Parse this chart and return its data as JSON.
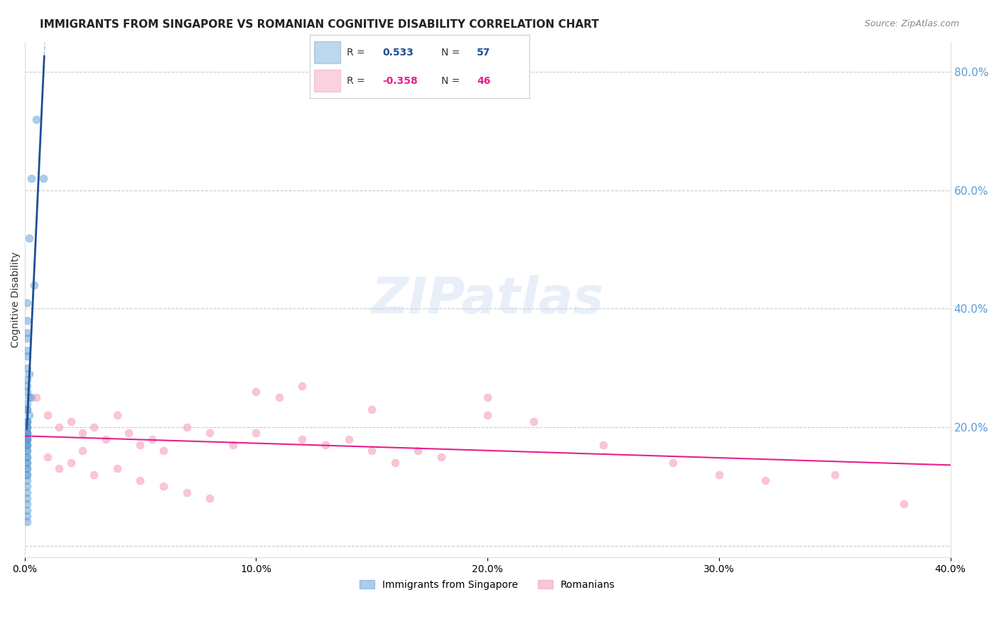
{
  "title": "IMMIGRANTS FROM SINGAPORE VS ROMANIAN COGNITIVE DISABILITY CORRELATION CHART",
  "source": "Source: ZipAtlas.com",
  "ylabel": "Cognitive Disability",
  "watermark": "ZIPatlas",
  "legend_entries": [
    {
      "label": "Immigrants from Singapore",
      "R": "0.533",
      "N": "57",
      "color": "#5b9bd5",
      "r_color": "#1f4e96",
      "sign": ""
    },
    {
      "label": "Romanians",
      "R": "-0.358",
      "N": "46",
      "color": "#f48fb1",
      "r_color": "#e91e8c",
      "sign": "-"
    }
  ],
  "right_yticks": [
    0.0,
    0.2,
    0.4,
    0.6,
    0.8
  ],
  "right_ytick_labels": [
    "",
    "20.0%",
    "40.0%",
    "60.0%",
    "80.0%"
  ],
  "xlim": [
    0.0,
    0.4
  ],
  "ylim": [
    -0.02,
    0.85
  ],
  "singapore_x": [
    0.005,
    0.003,
    0.008,
    0.002,
    0.004,
    0.001,
    0.001,
    0.001,
    0.001,
    0.001,
    0.001,
    0.001,
    0.002,
    0.001,
    0.001,
    0.001,
    0.003,
    0.002,
    0.001,
    0.001,
    0.001,
    0.002,
    0.001,
    0.001,
    0.001,
    0.001,
    0.001,
    0.001,
    0.001,
    0.001,
    0.001,
    0.001,
    0.001,
    0.001,
    0.001,
    0.001,
    0.001,
    0.001,
    0.001,
    0.001,
    0.001,
    0.001,
    0.001,
    0.001,
    0.001,
    0.001,
    0.001,
    0.001,
    0.001,
    0.001,
    0.001,
    0.001,
    0.001,
    0.001,
    0.001,
    0.001,
    0.001
  ],
  "singapore_y": [
    0.72,
    0.62,
    0.62,
    0.52,
    0.44,
    0.41,
    0.38,
    0.36,
    0.35,
    0.33,
    0.32,
    0.3,
    0.29,
    0.28,
    0.27,
    0.26,
    0.25,
    0.25,
    0.24,
    0.23,
    0.23,
    0.22,
    0.21,
    0.21,
    0.21,
    0.2,
    0.2,
    0.2,
    0.19,
    0.19,
    0.19,
    0.19,
    0.18,
    0.18,
    0.18,
    0.18,
    0.17,
    0.17,
    0.17,
    0.16,
    0.16,
    0.15,
    0.15,
    0.14,
    0.14,
    0.13,
    0.13,
    0.12,
    0.12,
    0.11,
    0.1,
    0.09,
    0.08,
    0.07,
    0.06,
    0.05,
    0.04
  ],
  "romanian_x": [
    0.005,
    0.01,
    0.015,
    0.02,
    0.025,
    0.03,
    0.035,
    0.04,
    0.045,
    0.05,
    0.055,
    0.06,
    0.07,
    0.08,
    0.09,
    0.1,
    0.11,
    0.12,
    0.13,
    0.14,
    0.15,
    0.16,
    0.17,
    0.18,
    0.2,
    0.22,
    0.25,
    0.28,
    0.3,
    0.32,
    0.01,
    0.015,
    0.02,
    0.025,
    0.03,
    0.04,
    0.05,
    0.06,
    0.07,
    0.08,
    0.1,
    0.12,
    0.15,
    0.2,
    0.35,
    0.38
  ],
  "romanian_y": [
    0.25,
    0.22,
    0.2,
    0.21,
    0.19,
    0.2,
    0.18,
    0.22,
    0.19,
    0.17,
    0.18,
    0.16,
    0.2,
    0.19,
    0.17,
    0.19,
    0.25,
    0.18,
    0.17,
    0.18,
    0.16,
    0.14,
    0.16,
    0.15,
    0.22,
    0.21,
    0.17,
    0.14,
    0.12,
    0.11,
    0.15,
    0.13,
    0.14,
    0.16,
    0.12,
    0.13,
    0.11,
    0.1,
    0.09,
    0.08,
    0.26,
    0.27,
    0.23,
    0.25,
    0.12,
    0.07
  ],
  "singapore_color": "#5b9bd5",
  "romanian_color": "#f48fb1",
  "singapore_trend_color": "#1f4e96",
  "romanian_trend_color": "#e91e8c",
  "background_color": "#ffffff",
  "grid_color": "#cccccc",
  "right_axis_color": "#5b9bd5",
  "title_fontsize": 11,
  "axis_label_fontsize": 10
}
